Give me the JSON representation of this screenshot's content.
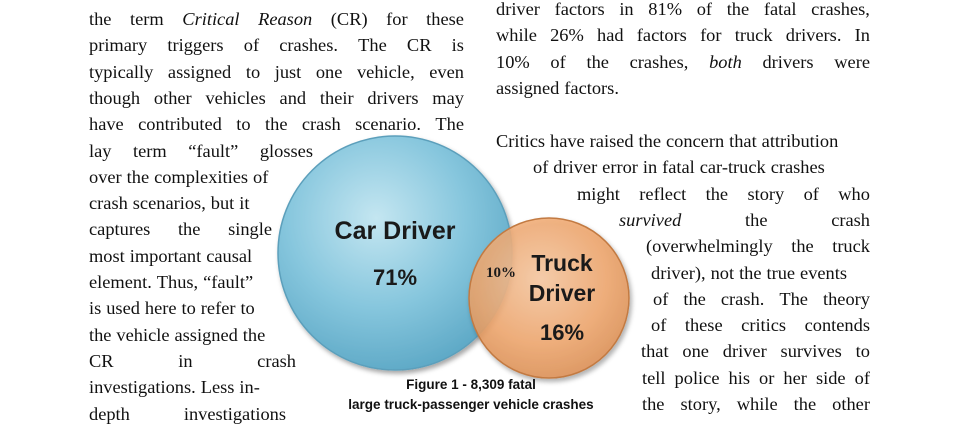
{
  "left_column": [
    {
      "segments": [
        {
          "t": "the term "
        },
        {
          "t": "Critical Reason",
          "i": true
        },
        {
          "t": " (CR) for these"
        }
      ]
    },
    {
      "segments": [
        {
          "t": "primary triggers of crashes.  The CR is"
        }
      ]
    },
    {
      "segments": [
        {
          "t": "typically assigned to just one vehicle, even"
        }
      ]
    },
    {
      "segments": [
        {
          "t": "though other vehicles and their drivers may"
        }
      ]
    },
    {
      "segments": [
        {
          "t": "have contributed to the crash scenario.  The"
        }
      ]
    },
    {
      "segments": [
        {
          "t": "lay term “fault” glosses"
        }
      ]
    },
    {
      "segments": [
        {
          "t": "over the complexities of"
        }
      ]
    },
    {
      "segments": [
        {
          "t": "crash scenarios, but it"
        }
      ]
    },
    {
      "segments": [
        {
          "t": "captures the single"
        }
      ]
    },
    {
      "segments": [
        {
          "t": "most important causal"
        }
      ]
    },
    {
      "segments": [
        {
          "t": "element. Thus, “fault”"
        }
      ]
    },
    {
      "segments": [
        {
          "t": "is used here to refer to"
        }
      ]
    },
    {
      "segments": [
        {
          "t": "the vehicle assigned the"
        }
      ]
    },
    {
      "segments": [
        {
          "t": "CR in crash"
        }
      ]
    },
    {
      "segments": [
        {
          "t": "investigations. Less in-"
        }
      ]
    },
    {
      "segments": [
        {
          "t": "depth investigations"
        }
      ]
    }
  ],
  "right_column_top": [
    {
      "segments": [
        {
          "t": "driver factors in 81% of the fatal crashes,"
        }
      ]
    },
    {
      "segments": [
        {
          "t": "while 26% had factors for truck drivers.  In"
        }
      ]
    },
    {
      "segments": [
        {
          "t": "10% of the crashes, "
        },
        {
          "t": "both",
          "i": true
        },
        {
          "t": " drivers were"
        }
      ]
    },
    {
      "segments": [
        {
          "t": "assigned factors."
        }
      ]
    }
  ],
  "right_column_bottom": [
    {
      "segments": [
        {
          "t": "Critics have raised the concern that attribution"
        }
      ]
    },
    {
      "segments": [
        {
          "t": "of driver error in fatal car-truck crashes"
        }
      ]
    },
    {
      "segments": [
        {
          "t": "might reflect the story of who"
        }
      ]
    },
    {
      "segments": [
        {
          "t": "survived",
          "i": true
        },
        {
          "t": " the crash"
        }
      ]
    },
    {
      "segments": [
        {
          "t": "(overwhelmingly the truck"
        }
      ]
    },
    {
      "segments": [
        {
          "t": "driver), not the true events"
        }
      ]
    },
    {
      "segments": [
        {
          "t": "of the crash.  The theory"
        }
      ]
    },
    {
      "segments": [
        {
          "t": "of these critics contends"
        }
      ]
    },
    {
      "segments": [
        {
          "t": "that one driver survives to"
        }
      ]
    },
    {
      "segments": [
        {
          "t": "tell police his or her side of"
        }
      ]
    },
    {
      "segments": [
        {
          "t": "the story, while the other"
        }
      ]
    }
  ],
  "figure": {
    "car_driver_label": "Car Driver",
    "car_driver_pct": "71%",
    "truck_driver_label_1": "Truck",
    "truck_driver_label_2": "Driver",
    "truck_driver_pct": "16%",
    "overlap_pct": "10%",
    "caption_line1": "Figure 1 - 8,309 fatal",
    "caption_line2": "large truck-passenger vehicle crashes",
    "colors": {
      "car": "#7fc4dc",
      "truck": "#f2a870"
    }
  }
}
